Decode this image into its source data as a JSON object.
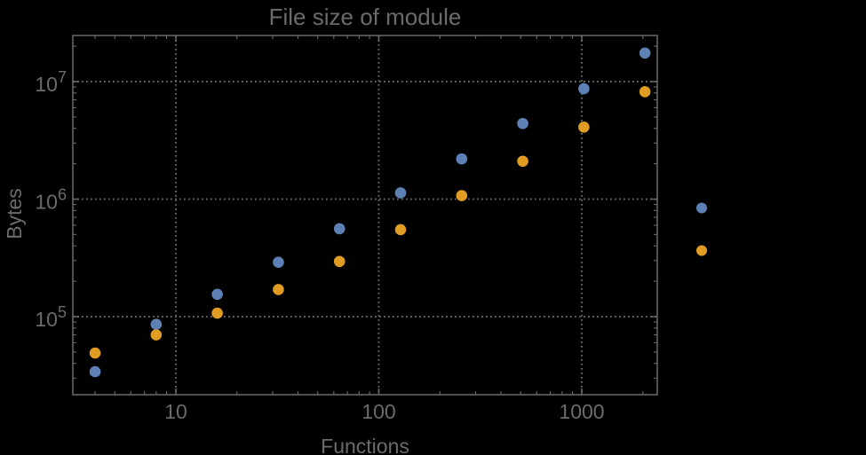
{
  "title": "File size of module",
  "colors": {
    "background": "#000000",
    "frame": "#6a6a6a",
    "grid": "#646464",
    "text": "#6b6b6b",
    "series_blue": "#5E81B5",
    "series_orange": "#E19C24"
  },
  "chart_data": {
    "type": "scatter",
    "scale": "log-log",
    "title": "File size of module",
    "xlabel": "Functions",
    "ylabel": "Bytes",
    "xlim": [
      3.2,
      2350
    ],
    "ylim": [
      22000,
      25000000
    ],
    "grid": "dotted lines at decade majors",
    "legend_position": "right-outside, markers only (no visible labels)",
    "x_major_ticks": [
      10,
      100,
      1000
    ],
    "x_tick_labels": [
      "10",
      "100",
      "1000"
    ],
    "y_major_ticks": [
      100000,
      1000000,
      10000000
    ],
    "y_tick_base": "10",
    "y_tick_exponents": [
      "5",
      "6",
      "7"
    ],
    "categories": [
      4,
      8,
      16,
      32,
      64,
      128,
      256,
      512,
      1024,
      2048
    ],
    "series": [
      {
        "name": "blue-series",
        "color": "#5E81B5",
        "x": [
          4,
          8,
          16,
          32,
          64,
          128,
          256,
          512,
          1024,
          2048
        ],
        "y": [
          34000,
          86000,
          155000,
          290000,
          560000,
          1130000,
          2200000,
          4400000,
          8700000,
          17500000
        ]
      },
      {
        "name": "orange-series",
        "color": "#E19C24",
        "x": [
          4,
          8,
          16,
          32,
          64,
          128,
          256,
          512,
          1024,
          2048
        ],
        "y": [
          49000,
          70000,
          107000,
          170000,
          295000,
          550000,
          1070000,
          2100000,
          4100000,
          8200000
        ]
      }
    ],
    "legend_markers": [
      {
        "name": "legend-marker-blue",
        "color": "#5E81B5"
      },
      {
        "name": "legend-marker-orange",
        "color": "#E19C24"
      }
    ]
  }
}
